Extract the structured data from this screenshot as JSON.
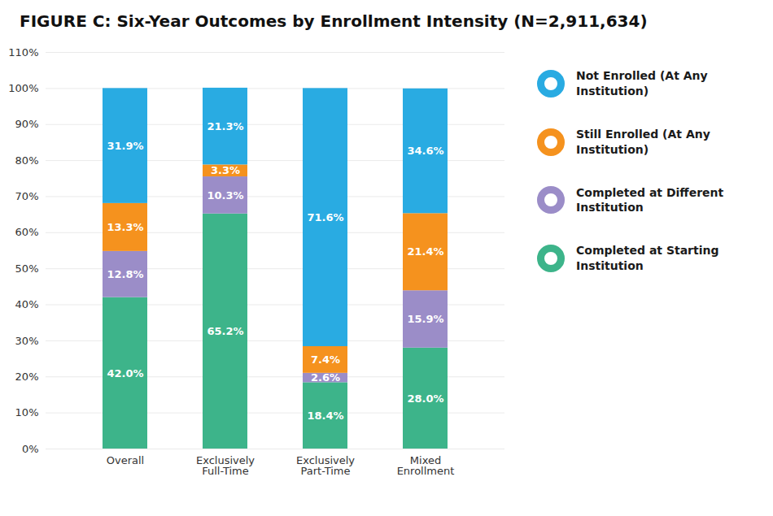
{
  "chart_data": {
    "type": "bar",
    "title": "FIGURE C: Six-Year Outcomes by Enrollment Intensity (N=2,911,634)",
    "categories": [
      "Overall",
      "Exclusively\nFull-Time",
      "Exclusively\nPart-Time",
      "Mixed\nEnrollment"
    ],
    "series": [
      {
        "name": "Completed at Starting Institution",
        "color": "#3DB48A",
        "values": [
          42.0,
          65.2,
          18.4,
          28.0
        ],
        "value_labels": [
          "42.0%",
          "65.2%",
          "18.4%",
          "28.0%"
        ]
      },
      {
        "name": "Completed at Different Institution",
        "color": "#9B8DC8",
        "values": [
          12.8,
          10.3,
          2.6,
          15.9
        ],
        "value_labels": [
          "12.8%",
          "10.3%",
          "2.6%",
          "15.9%"
        ]
      },
      {
        "name": "Still Enrolled (At Any Institution)",
        "color": "#F5921E",
        "values": [
          13.3,
          3.3,
          7.4,
          21.4
        ],
        "value_labels": [
          "13.3%",
          "3.3%",
          "7.4%",
          "21.4%"
        ]
      },
      {
        "name": "Not Enrolled (At Any Institution)",
        "color": "#29ABE2",
        "values": [
          31.9,
          21.3,
          71.6,
          34.6
        ],
        "value_labels": [
          "31.9%",
          "21.3%",
          "71.6%",
          "34.6%"
        ]
      }
    ],
    "stacked": true,
    "data_labels": true,
    "ylim": [
      0,
      110
    ],
    "yticks": [
      {
        "value": 0,
        "label": "0%"
      },
      {
        "value": 10,
        "label": "10%"
      },
      {
        "value": 20,
        "label": "20%"
      },
      {
        "value": 30,
        "label": "30%"
      },
      {
        "value": 40,
        "label": "40%"
      },
      {
        "value": 50,
        "label": "50%"
      },
      {
        "value": 60,
        "label": "60%"
      },
      {
        "value": 70,
        "label": "70%"
      },
      {
        "value": 80,
        "label": "80%"
      },
      {
        "value": 90,
        "label": "90%"
      },
      {
        "value": 100,
        "label": "100%"
      },
      {
        "value": 110,
        "label": "110%"
      }
    ],
    "grid": true,
    "legend": "right"
  }
}
